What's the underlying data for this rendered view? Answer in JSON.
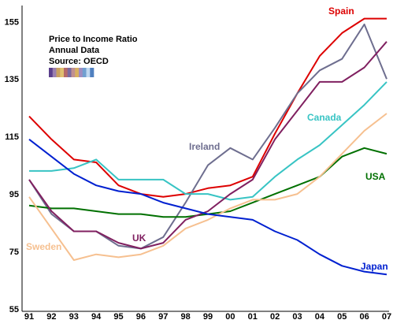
{
  "chart_data": {
    "type": "line",
    "title": "Price to Income Ratio",
    "subtitle": "Annual Data",
    "source": "Source: OECD",
    "xlabel": "",
    "ylabel": "",
    "categories": [
      "91",
      "92",
      "93",
      "94",
      "95",
      "96",
      "97",
      "98",
      "99",
      "00",
      "01",
      "02",
      "03",
      "04",
      "05",
      "06",
      "07"
    ],
    "ylim": [
      55,
      157
    ],
    "yticks": [
      55,
      75,
      95,
      115,
      135,
      155
    ],
    "grid": false,
    "series": [
      {
        "name": "Spain",
        "color": "#dd0000",
        "values": [
          122,
          114,
          107,
          106,
          98,
          95,
          94,
          95,
          97,
          98,
          101,
          116,
          130,
          143,
          151,
          156,
          156
        ]
      },
      {
        "name": "Ireland",
        "color": "#6e6e8f",
        "values": [
          100,
          88,
          82,
          82,
          77,
          76,
          80,
          92,
          105,
          111,
          107,
          118,
          130,
          138,
          142,
          154,
          135
        ]
      },
      {
        "name": "Canada",
        "color": "#38c4c4",
        "values": [
          103,
          103,
          104,
          107,
          100,
          100,
          100,
          95,
          95,
          93,
          94,
          101,
          107,
          112,
          119,
          126,
          134
        ]
      },
      {
        "name": "USA",
        "color": "#007000",
        "values": [
          91,
          90,
          90,
          89,
          88,
          88,
          87,
          87,
          88,
          89,
          92,
          95,
          98,
          101,
          108,
          111,
          109
        ]
      },
      {
        "name": "UK",
        "color": "#802060",
        "values": [
          100,
          89,
          82,
          82,
          78,
          76,
          78,
          86,
          89,
          95,
          100,
          114,
          124,
          134,
          134,
          139,
          148
        ]
      },
      {
        "name": "Sweden",
        "color": "#f6c090",
        "values": [
          94,
          83,
          72,
          74,
          73,
          74,
          77,
          83,
          86,
          90,
          93,
          93,
          95,
          101,
          109,
          117,
          123
        ]
      },
      {
        "name": "Japan",
        "color": "#0020d0",
        "values": [
          114,
          108,
          102,
          98,
          96,
          95,
          92,
          90,
          88,
          87,
          86,
          82,
          79,
          74,
          70,
          68,
          67
        ]
      }
    ],
    "annotations": [
      {
        "text": "Spain",
        "color": "#dd0000"
      },
      {
        "text": "Ireland",
        "color": "#6e6e8f"
      },
      {
        "text": "Canada",
        "color": "#38c4c4"
      },
      {
        "text": "USA",
        "color": "#007000"
      },
      {
        "text": "UK",
        "color": "#802060"
      },
      {
        "text": "Sweden",
        "color": "#f6c090"
      },
      {
        "text": "Japan",
        "color": "#0020d0"
      }
    ]
  },
  "logo_colors": [
    "#5a3f8c",
    "#9a7fb0",
    "#c8a060",
    "#e0c070",
    "#b56a6a",
    "#7a6aa0",
    "#c09090",
    "#d8b060",
    "#a08cc0",
    "#70a0d0",
    "#c0d8f0",
    "#5080c0"
  ]
}
